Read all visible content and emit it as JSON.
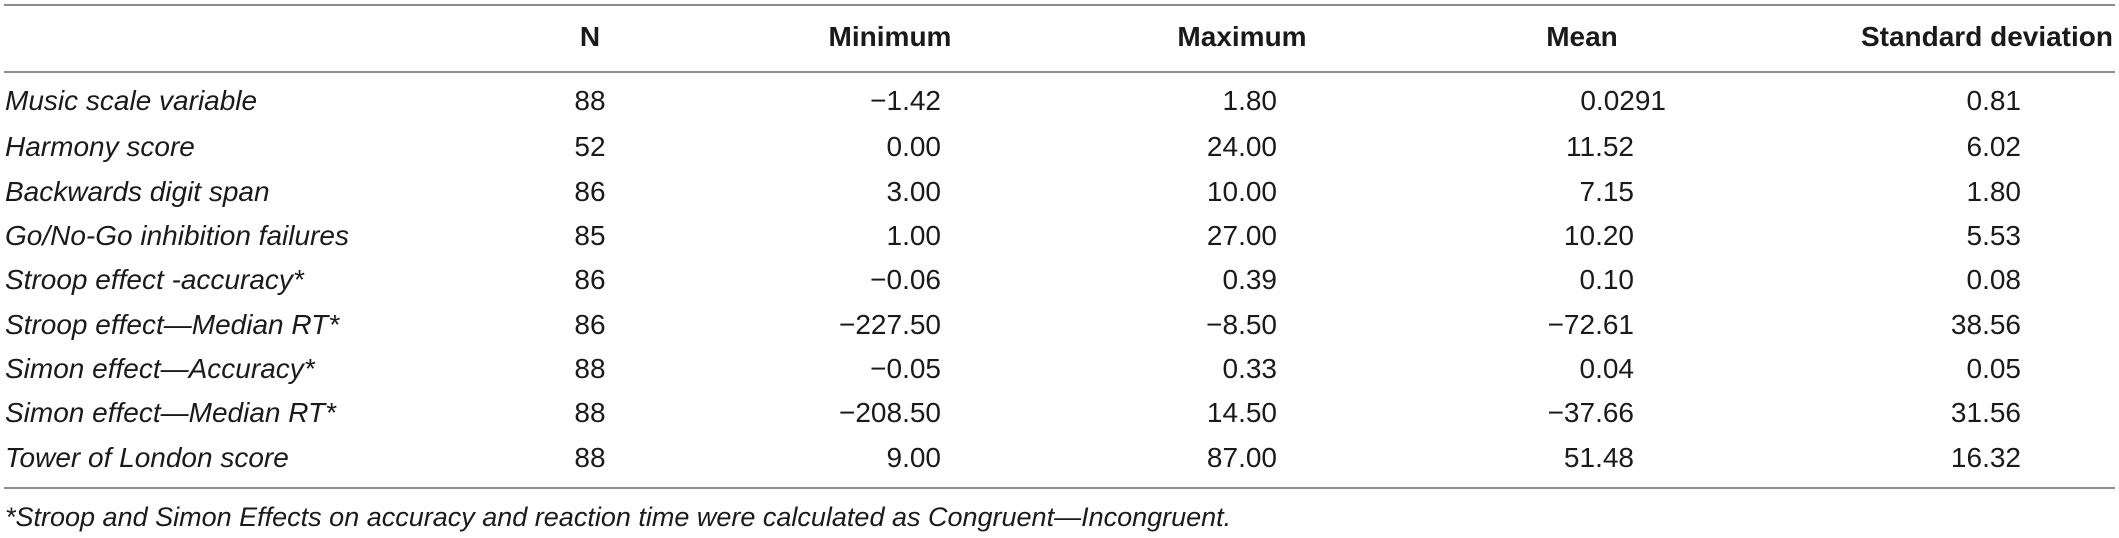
{
  "table": {
    "columns": [
      "",
      "N",
      "Minimum",
      "Maximum",
      "Mean",
      "Standard deviation"
    ],
    "rows": [
      {
        "label": "Music scale variable",
        "n": "88",
        "min": "−1.42",
        "max": "1.80",
        "mean": "0.0291",
        "sd": "0.81"
      },
      {
        "label": "Harmony score",
        "n": "52",
        "min": "0.00",
        "max": "24.00",
        "mean": "11.52",
        "sd": "6.02"
      },
      {
        "label": "Backwards digit span",
        "n": "86",
        "min": "3.00",
        "max": "10.00",
        "mean": "7.15",
        "sd": "1.80"
      },
      {
        "label": "Go/No-Go inhibition failures",
        "n": "85",
        "min": "1.00",
        "max": "27.00",
        "mean": "10.20",
        "sd": "5.53"
      },
      {
        "label": "Stroop effect -accuracy*",
        "n": "86",
        "min": "−0.06",
        "max": "0.39",
        "mean": "0.10",
        "sd": "0.08"
      },
      {
        "label": "Stroop effect—Median RT*",
        "n": "86",
        "min": "−227.50",
        "max": "−8.50",
        "mean": "−72.61",
        "sd": "38.56"
      },
      {
        "label": "Simon effect—Accuracy*",
        "n": "88",
        "min": "−0.05",
        "max": "0.33",
        "mean": "0.04",
        "sd": "0.05"
      },
      {
        "label": "Simon effect—Median RT*",
        "n": "88",
        "min": "−208.50",
        "max": "14.50",
        "mean": "−37.66",
        "sd": "31.56"
      },
      {
        "label": "Tower of London score",
        "n": "88",
        "min": "9.00",
        "max": "87.00",
        "mean": "51.48",
        "sd": "16.32"
      }
    ],
    "footnote": "*Stroop and Simon Effects on accuracy and reaction time were calculated as Congruent—Incongruent."
  }
}
